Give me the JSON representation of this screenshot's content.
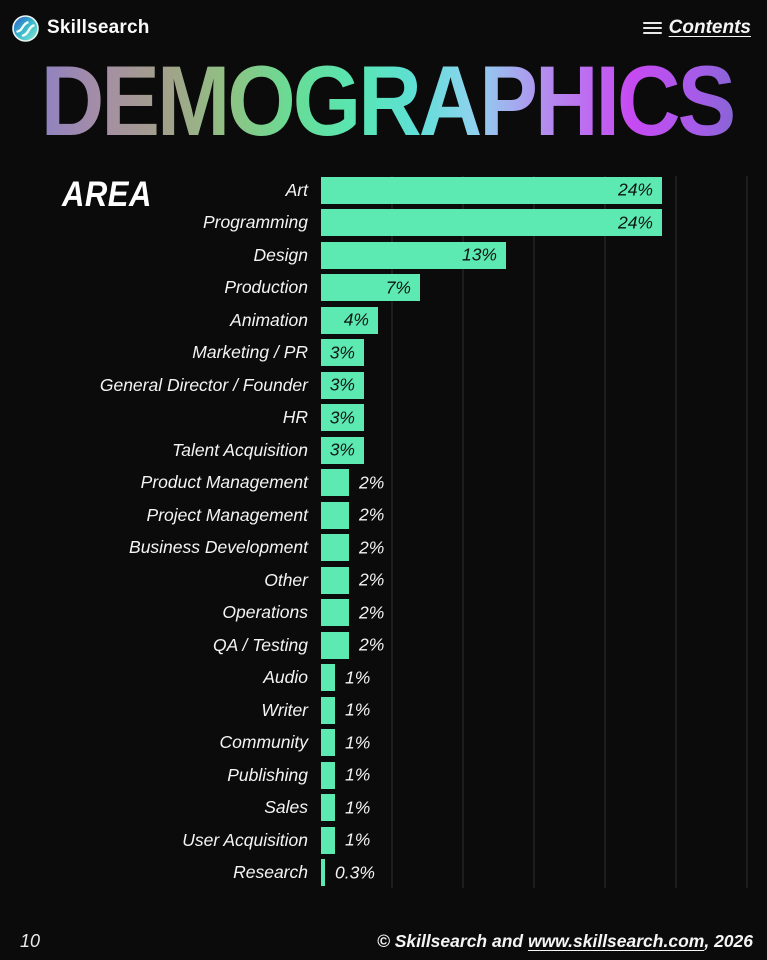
{
  "header": {
    "brand": "Skillsearch",
    "contents_label": "Contents"
  },
  "title": "DEMOGRAPHICS",
  "colors": {
    "background": "#0b0b0b",
    "bar": "#5de9b2",
    "gridline": "#1d1d1d",
    "title_gradient": [
      "#8a7fc8 0%",
      "#a48da6 10%",
      "#a3a08b 19%",
      "#8fc283 28%",
      "#68dc96 37%",
      "#58e6b4 46%",
      "#5fdfd6 54%",
      "#8fd2ee 62%",
      "#b48cee 72%",
      "#c64af2 84%",
      "#a55ce8 93%",
      "#7e68cf 100%"
    ]
  },
  "chart_data": {
    "type": "bar",
    "orientation": "horizontal",
    "title": "DEMOGRAPHICS",
    "group_label": "AREA",
    "categories": [
      "Art",
      "Programming",
      "Design",
      "Production",
      "Animation",
      "Marketing / PR",
      "General Director / Founder",
      "HR",
      "Talent Acquisition",
      "Product Management",
      "Project Management",
      "Business Development",
      "Other",
      "Operations",
      "QA / Testing",
      "Audio",
      "Writer",
      "Community",
      "Publishing",
      "Sales",
      "User Acquisition",
      "Research"
    ],
    "values": [
      24,
      24,
      13,
      7,
      4,
      3,
      3,
      3,
      3,
      2,
      2,
      2,
      2,
      2,
      2,
      1,
      1,
      1,
      1,
      1,
      1,
      0.3
    ],
    "display_values": [
      "24%",
      "24%",
      "13%",
      "7%",
      "4%",
      "3%",
      "3%",
      "3%",
      "3%",
      "2%",
      "2%",
      "2%",
      "2%",
      "2%",
      "2%",
      "1%",
      "1%",
      "1%",
      "1%",
      "1%",
      "1%",
      "0.3%"
    ],
    "xlim": [
      0,
      30
    ],
    "grid": true,
    "grid_ticks": [
      5,
      10,
      15,
      20,
      25,
      30
    ],
    "legend": false,
    "bar_color": "#5de9b2",
    "value_label_inside_threshold": 3
  },
  "footer": {
    "page_number": "10",
    "copyright_pre": "© Skillsearch and ",
    "copyright_link": "www.skillsearch.com",
    "copyright_post": ", 2026"
  }
}
